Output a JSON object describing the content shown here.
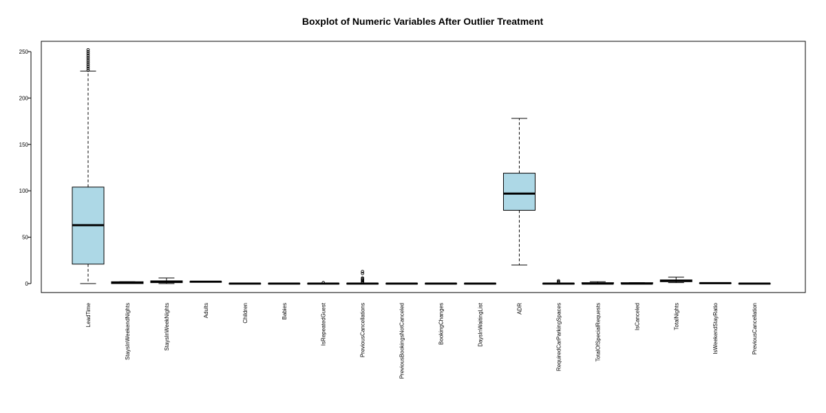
{
  "chart_data": {
    "type": "boxplot",
    "title": "Boxplot of Numeric Variables After Outlier Treatment",
    "xlabel": "",
    "ylabel": "",
    "ylim": [
      -10,
      262
    ],
    "yticks": [
      0,
      50,
      100,
      150,
      200,
      250
    ],
    "grid": false,
    "box_color": "#ADD8E6",
    "line_color": "#000000",
    "boxes": [
      {
        "name": "LeadTime",
        "whisker_low": 0,
        "q1": 21,
        "median": 63,
        "q3": 104,
        "whisker_high": 229,
        "outliers": [
          230,
          232,
          234,
          236,
          238,
          240,
          242,
          244,
          246,
          248,
          250,
          252
        ]
      },
      {
        "name": "StaysInWeekendNights",
        "whisker_low": 0,
        "q1": 0,
        "median": 1,
        "q3": 2,
        "whisker_high": 2,
        "outliers": []
      },
      {
        "name": "StaysInWeekNights",
        "whisker_low": 0,
        "q1": 1,
        "median": 2,
        "q3": 3,
        "whisker_high": 6,
        "outliers": []
      },
      {
        "name": "Adults",
        "whisker_low": 2,
        "q1": 2,
        "median": 2,
        "q3": 2,
        "whisker_high": 2,
        "outliers": []
      },
      {
        "name": "Children",
        "whisker_low": 0,
        "q1": 0,
        "median": 0,
        "q3": 0,
        "whisker_high": 0,
        "outliers": []
      },
      {
        "name": "Babies",
        "whisker_low": 0,
        "q1": 0,
        "median": 0,
        "q3": 0,
        "whisker_high": 0,
        "outliers": []
      },
      {
        "name": "IsRepeatedGuest",
        "whisker_low": 0,
        "q1": 0,
        "median": 0,
        "q3": 0,
        "whisker_high": 0,
        "outliers": [
          1
        ]
      },
      {
        "name": "PreviousCancellations",
        "whisker_low": 0,
        "q1": 0,
        "median": 0,
        "q3": 0,
        "whisker_high": 0,
        "outliers": [
          1,
          2,
          3,
          4,
          5,
          6,
          11,
          13
        ]
      },
      {
        "name": "PreviousBookingsNotCanceled",
        "whisker_low": 0,
        "q1": 0,
        "median": 0,
        "q3": 0,
        "whisker_high": 0,
        "outliers": []
      },
      {
        "name": "BookingChanges",
        "whisker_low": 0,
        "q1": 0,
        "median": 0,
        "q3": 0,
        "whisker_high": 0,
        "outliers": []
      },
      {
        "name": "DaysInWaitingList",
        "whisker_low": 0,
        "q1": 0,
        "median": 0,
        "q3": 0,
        "whisker_high": 0,
        "outliers": []
      },
      {
        "name": "ADR",
        "whisker_low": 20,
        "q1": 79,
        "median": 97,
        "q3": 119,
        "whisker_high": 178,
        "outliers": []
      },
      {
        "name": "RequiredCarParkingSpaces",
        "whisker_low": 0,
        "q1": 0,
        "median": 0,
        "q3": 0,
        "whisker_high": 0,
        "outliers": [
          1,
          2,
          3
        ]
      },
      {
        "name": "TotalOfSpecialRequests",
        "whisker_low": 0,
        "q1": 0,
        "median": 0,
        "q3": 1,
        "whisker_high": 2,
        "outliers": []
      },
      {
        "name": "IsCanceled",
        "whisker_low": 0,
        "q1": 0,
        "median": 0,
        "q3": 1,
        "whisker_high": 1,
        "outliers": []
      },
      {
        "name": "TotalNights",
        "whisker_low": 1,
        "q1": 2,
        "median": 3,
        "q3": 4,
        "whisker_high": 7,
        "outliers": []
      },
      {
        "name": "IsWeekendStayRatio",
        "whisker_low": 0,
        "q1": 0.3,
        "median": 0.5,
        "q3": 0.6,
        "whisker_high": 1,
        "outliers": []
      },
      {
        "name": "PreviousCancellation",
        "whisker_low": 0,
        "q1": 0,
        "median": 0,
        "q3": 0,
        "whisker_high": 0,
        "outliers": []
      }
    ]
  }
}
